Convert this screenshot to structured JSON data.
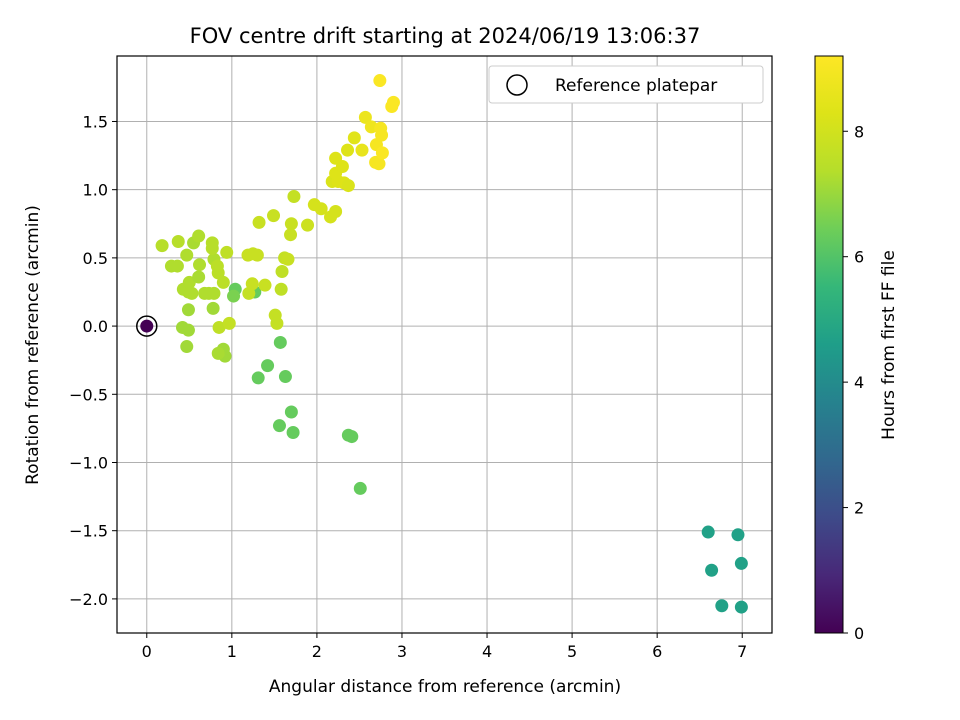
{
  "chart_data": {
    "type": "scatter",
    "title": "FOV centre drift starting at 2024/06/19 13:06:37",
    "xlabel": "Angular distance from reference (arcmin)",
    "ylabel": "Rotation from reference (arcmin)",
    "xlim": [
      -0.35,
      7.35
    ],
    "ylim": [
      -2.25,
      1.98
    ],
    "xticks": [
      0,
      1,
      2,
      3,
      4,
      5,
      6,
      7
    ],
    "yticks": [
      -2.0,
      -1.5,
      -1.0,
      -0.5,
      0.0,
      0.5,
      1.0,
      1.5
    ],
    "grid": true,
    "legend": {
      "position": "top-right",
      "entries": [
        "Reference platepar"
      ]
    },
    "colorbar": {
      "label": "Hours from first FF file",
      "range": [
        0,
        9.2
      ],
      "ticks": [
        0,
        2,
        4,
        6,
        8
      ],
      "colormap": "viridis"
    },
    "reference_point": {
      "x": 0,
      "y": 0,
      "hours": 0
    },
    "points": [
      {
        "x": 6.6,
        "y": -1.51,
        "c": 4.7
      },
      {
        "x": 6.95,
        "y": -1.53,
        "c": 4.7
      },
      {
        "x": 6.64,
        "y": -1.79,
        "c": 4.7
      },
      {
        "x": 6.99,
        "y": -1.74,
        "c": 4.7
      },
      {
        "x": 6.76,
        "y": -2.05,
        "c": 4.7
      },
      {
        "x": 6.99,
        "y": -2.06,
        "c": 4.7
      },
      {
        "x": 2.51,
        "y": -1.19,
        "c": 6.3
      },
      {
        "x": 2.37,
        "y": -0.8,
        "c": 6.3
      },
      {
        "x": 2.41,
        "y": -0.81,
        "c": 6.3
      },
      {
        "x": 1.56,
        "y": -0.73,
        "c": 6.3
      },
      {
        "x": 1.72,
        "y": -0.78,
        "c": 6.3
      },
      {
        "x": 1.7,
        "y": -0.63,
        "c": 6.3
      },
      {
        "x": 1.31,
        "y": -0.38,
        "c": 6.3
      },
      {
        "x": 1.63,
        "y": -0.37,
        "c": 6.3
      },
      {
        "x": 1.42,
        "y": -0.29,
        "c": 6.3
      },
      {
        "x": 1.57,
        "y": -0.12,
        "c": 6.3
      },
      {
        "x": 1.27,
        "y": 0.25,
        "c": 6.3
      },
      {
        "x": 1.04,
        "y": 0.27,
        "c": 6.3
      },
      {
        "x": 1.02,
        "y": 0.22,
        "c": 6.6
      },
      {
        "x": 0.92,
        "y": -0.22,
        "c": 7.1
      },
      {
        "x": 0.9,
        "y": -0.17,
        "c": 7.1
      },
      {
        "x": 0.84,
        "y": -0.2,
        "c": 7.2
      },
      {
        "x": 0.47,
        "y": -0.15,
        "c": 7.1
      },
      {
        "x": 0.42,
        "y": -0.01,
        "c": 7.1
      },
      {
        "x": 0.49,
        "y": -0.03,
        "c": 7.1
      },
      {
        "x": 0.49,
        "y": 0.12,
        "c": 7.1
      },
      {
        "x": 0.78,
        "y": 0.13,
        "c": 7.1
      },
      {
        "x": 0.43,
        "y": 0.27,
        "c": 7.3
      },
      {
        "x": 0.49,
        "y": 0.25,
        "c": 7.3
      },
      {
        "x": 0.53,
        "y": 0.24,
        "c": 7.3
      },
      {
        "x": 0.68,
        "y": 0.24,
        "c": 7.3
      },
      {
        "x": 0.73,
        "y": 0.24,
        "c": 7.3
      },
      {
        "x": 0.79,
        "y": 0.24,
        "c": 7.3
      },
      {
        "x": 0.5,
        "y": 0.32,
        "c": 7.3
      },
      {
        "x": 0.61,
        "y": 0.36,
        "c": 7.2
      },
      {
        "x": 0.29,
        "y": 0.44,
        "c": 7.3
      },
      {
        "x": 0.36,
        "y": 0.44,
        "c": 7.3
      },
      {
        "x": 0.47,
        "y": 0.52,
        "c": 7.3
      },
      {
        "x": 0.62,
        "y": 0.45,
        "c": 7.3
      },
      {
        "x": 0.79,
        "y": 0.49,
        "c": 7.3
      },
      {
        "x": 0.18,
        "y": 0.59,
        "c": 7.4
      },
      {
        "x": 0.37,
        "y": 0.62,
        "c": 7.4
      },
      {
        "x": 0.55,
        "y": 0.61,
        "c": 7.2
      },
      {
        "x": 0.61,
        "y": 0.66,
        "c": 7.3
      },
      {
        "x": 0.77,
        "y": 0.61,
        "c": 7.4
      },
      {
        "x": 0.77,
        "y": 0.57,
        "c": 7.4
      },
      {
        "x": 0.83,
        "y": 0.44,
        "c": 7.5
      },
      {
        "x": 0.94,
        "y": 0.54,
        "c": 7.6
      },
      {
        "x": 0.84,
        "y": 0.39,
        "c": 7.5
      },
      {
        "x": 0.9,
        "y": 0.32,
        "c": 7.5
      },
      {
        "x": 0.85,
        "y": -0.01,
        "c": 7.6
      },
      {
        "x": 0.97,
        "y": 0.02,
        "c": 7.7
      },
      {
        "x": 1.2,
        "y": 0.24,
        "c": 7.7
      },
      {
        "x": 1.24,
        "y": 0.31,
        "c": 7.8
      },
      {
        "x": 1.39,
        "y": 0.3,
        "c": 7.8
      },
      {
        "x": 1.51,
        "y": 0.08,
        "c": 7.7
      },
      {
        "x": 1.53,
        "y": 0.02,
        "c": 7.7
      },
      {
        "x": 1.58,
        "y": 0.27,
        "c": 7.6
      },
      {
        "x": 1.59,
        "y": 0.4,
        "c": 7.6
      },
      {
        "x": 1.62,
        "y": 0.5,
        "c": 7.7
      },
      {
        "x": 1.66,
        "y": 0.49,
        "c": 7.8
      },
      {
        "x": 1.19,
        "y": 0.52,
        "c": 7.8
      },
      {
        "x": 1.25,
        "y": 0.53,
        "c": 7.8
      },
      {
        "x": 1.3,
        "y": 0.52,
        "c": 7.8
      },
      {
        "x": 1.32,
        "y": 0.76,
        "c": 7.8
      },
      {
        "x": 1.49,
        "y": 0.81,
        "c": 7.8
      },
      {
        "x": 1.69,
        "y": 0.67,
        "c": 7.8
      },
      {
        "x": 1.7,
        "y": 0.75,
        "c": 7.8
      },
      {
        "x": 1.89,
        "y": 0.74,
        "c": 7.9
      },
      {
        "x": 1.73,
        "y": 0.95,
        "c": 7.7
      },
      {
        "x": 1.97,
        "y": 0.89,
        "c": 8.1
      },
      {
        "x": 2.05,
        "y": 0.86,
        "c": 8.1
      },
      {
        "x": 2.16,
        "y": 0.8,
        "c": 8.1
      },
      {
        "x": 2.22,
        "y": 0.84,
        "c": 8.1
      },
      {
        "x": 2.18,
        "y": 1.06,
        "c": 8.2
      },
      {
        "x": 2.25,
        "y": 1.06,
        "c": 8.3
      },
      {
        "x": 2.32,
        "y": 1.05,
        "c": 8.3
      },
      {
        "x": 2.37,
        "y": 1.03,
        "c": 8.2
      },
      {
        "x": 2.22,
        "y": 1.12,
        "c": 8.3
      },
      {
        "x": 2.3,
        "y": 1.17,
        "c": 8.3
      },
      {
        "x": 2.22,
        "y": 1.23,
        "c": 8.3
      },
      {
        "x": 2.36,
        "y": 1.29,
        "c": 8.3
      },
      {
        "x": 2.44,
        "y": 1.38,
        "c": 8.4
      },
      {
        "x": 2.53,
        "y": 1.29,
        "c": 8.6
      },
      {
        "x": 2.57,
        "y": 1.53,
        "c": 8.7
      },
      {
        "x": 2.64,
        "y": 1.46,
        "c": 8.8
      },
      {
        "x": 2.69,
        "y": 1.2,
        "c": 9.0
      },
      {
        "x": 2.73,
        "y": 1.19,
        "c": 9.0
      },
      {
        "x": 2.7,
        "y": 1.33,
        "c": 9.0
      },
      {
        "x": 2.77,
        "y": 1.27,
        "c": 9.1
      },
      {
        "x": 2.76,
        "y": 1.4,
        "c": 9.0
      },
      {
        "x": 2.75,
        "y": 1.45,
        "c": 9.0
      },
      {
        "x": 2.74,
        "y": 1.8,
        "c": 9.1
      },
      {
        "x": 2.88,
        "y": 1.61,
        "c": 9.1
      },
      {
        "x": 2.9,
        "y": 1.64,
        "c": 9.1
      }
    ]
  }
}
